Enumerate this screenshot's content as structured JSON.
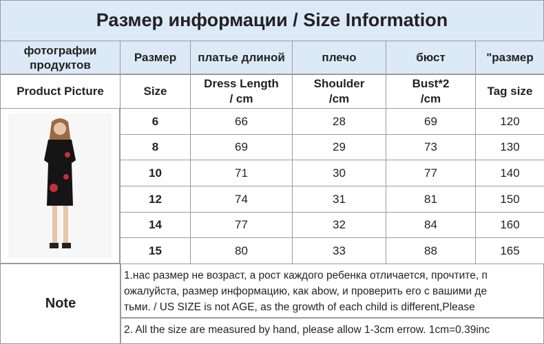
{
  "header": {
    "title": "Размер информации / Size Information"
  },
  "table": {
    "header_ru": [
      "фотографии продуктов",
      "Размер",
      "платье длиной",
      "плечо",
      "бюст",
      "\"размер"
    ],
    "header_en": [
      "Product Picture",
      "Size",
      "Dress Length\n / cm",
      "Shoulder\n/cm",
      "Bust*2\n/cm",
      "Tag size"
    ],
    "rows": [
      [
        6,
        66,
        28,
        69,
        120
      ],
      [
        8,
        69,
        29,
        73,
        130
      ],
      [
        10,
        71,
        30,
        77,
        140
      ],
      [
        12,
        74,
        31,
        81,
        150
      ],
      [
        14,
        77,
        32,
        84,
        160
      ],
      [
        15,
        80,
        33,
        88,
        165
      ]
    ]
  },
  "note": {
    "label": "Note",
    "lines": [
      "1.нас размер не возраст, а рост каждого ребенка отличается, прочтите, п",
      "ожалуйста, размер информацию, как abow, и проверить его с вашими де",
      "тьми.  /  US SIZE is not AGE, as the growth of each child is different,Please"
    ],
    "line2": "2. All the size are measured by hand, please allow 1-3cm errow. 1cm=0.39inc"
  }
}
